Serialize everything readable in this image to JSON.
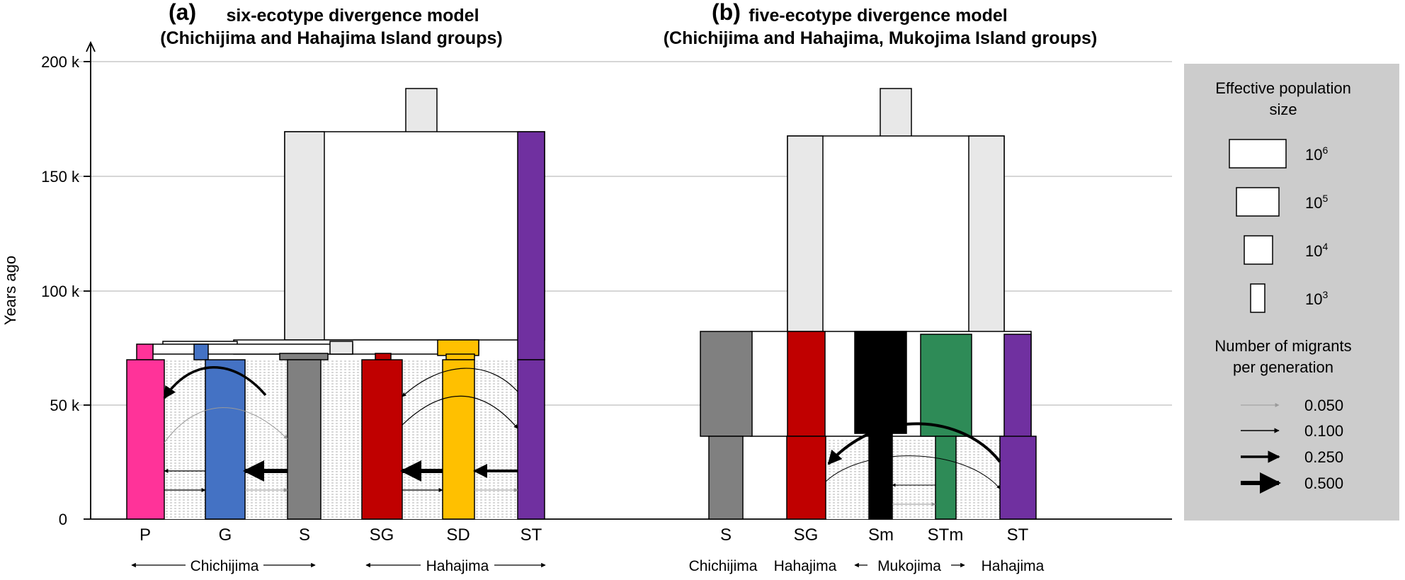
{
  "panel_a": {
    "tag": "(a)",
    "title": "six-ecotype divergence model",
    "subtitle": "(Chichijima and Hahajima Island groups)",
    "populations": [
      "P",
      "G",
      "S",
      "SG",
      "SD",
      "ST"
    ],
    "groups": [
      "Chichijima",
      "Hahajima"
    ]
  },
  "panel_b": {
    "tag": "(b)",
    "title": "five-ecotype divergence model",
    "subtitle": "(Chichijima and Hahajima, Mukojima Island groups)",
    "populations": [
      "S",
      "SG",
      "Sm",
      "STm",
      "ST"
    ],
    "groups": [
      "Chichijima",
      "Hahajima",
      "Mukojima",
      "Hahajima"
    ]
  },
  "y_axis": {
    "label": "Years ago",
    "ticks": [
      "200 k",
      "150 k",
      "100 k",
      "50 k",
      "0"
    ]
  },
  "legend": {
    "size_title_line1": "Effective population",
    "size_title_line2": "size",
    "sizes": [
      {
        "base": "10",
        "exp": "6"
      },
      {
        "base": "10",
        "exp": "5"
      },
      {
        "base": "10",
        "exp": "4"
      },
      {
        "base": "10",
        "exp": "3"
      }
    ],
    "migrants_title_line1": "Number of migrants",
    "migrants_title_line2": "per generation",
    "migrant_rates": [
      "0.050",
      "0.100",
      "0.250",
      "0.500"
    ]
  },
  "colors": {
    "P": "#ff3399",
    "G": "#4472c4",
    "S": "#808080",
    "SG": "#c00000",
    "SD": "#ffc000",
    "ST": "#7030a0",
    "Sm": "#000000",
    "STm": "#2e8b57",
    "ancestral": "#e8e8e8",
    "legend_bg": "#cccccc",
    "grid": "#c8c8c8"
  }
}
